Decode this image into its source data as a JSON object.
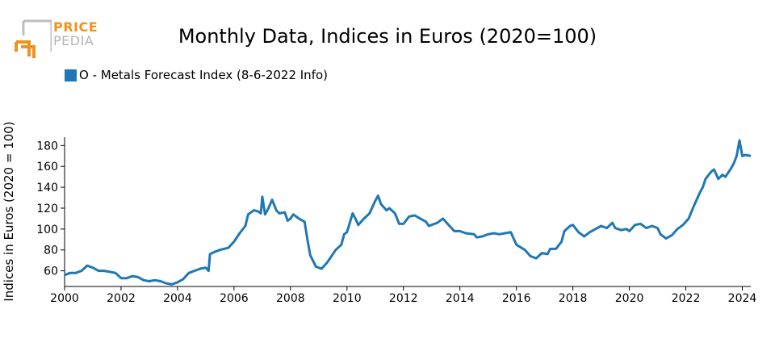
{
  "logo": {
    "line1": "PRICE",
    "line2": "PEDIA"
  },
  "colors": {
    "series": "#1f77b4",
    "logo_orange": "#f0921e",
    "logo_gray": "#b5b5b5"
  },
  "chart_data": {
    "type": "line",
    "title": "Monthly Data, Indices in Euros (2020=100)",
    "ylabel": "Indices in Euros (2020 = 100)",
    "xlabel": "",
    "xlim": [
      2000,
      2024.3
    ],
    "ylim": [
      45,
      188
    ],
    "xticks": [
      2000,
      2002,
      2004,
      2006,
      2008,
      2010,
      2012,
      2014,
      2016,
      2018,
      2020,
      2022,
      2024
    ],
    "yticks": [
      60,
      80,
      100,
      120,
      140,
      160,
      180
    ],
    "grid": false,
    "legend_position": "top-left",
    "series": [
      {
        "name": "O - Metals Forecast Index (8-6-2022 Info)",
        "color": "#1f77b4",
        "points": [
          [
            2000.0,
            56
          ],
          [
            2000.2,
            58
          ],
          [
            2000.4,
            58
          ],
          [
            2000.6,
            60
          ],
          [
            2000.8,
            65
          ],
          [
            2001.0,
            63
          ],
          [
            2001.2,
            60
          ],
          [
            2001.4,
            60
          ],
          [
            2001.6,
            59
          ],
          [
            2001.8,
            58
          ],
          [
            2002.0,
            53
          ],
          [
            2002.2,
            53
          ],
          [
            2002.4,
            55
          ],
          [
            2002.6,
            54
          ],
          [
            2002.8,
            51
          ],
          [
            2003.0,
            50
          ],
          [
            2003.2,
            51
          ],
          [
            2003.4,
            50
          ],
          [
            2003.6,
            48
          ],
          [
            2003.8,
            47
          ],
          [
            2004.0,
            49
          ],
          [
            2004.2,
            52
          ],
          [
            2004.4,
            58
          ],
          [
            2004.6,
            60
          ],
          [
            2004.8,
            62
          ],
          [
            2005.0,
            63
          ],
          [
            2005.1,
            60
          ],
          [
            2005.15,
            76
          ],
          [
            2005.3,
            78
          ],
          [
            2005.5,
            80
          ],
          [
            2005.8,
            82
          ],
          [
            2006.0,
            88
          ],
          [
            2006.2,
            96
          ],
          [
            2006.4,
            103
          ],
          [
            2006.5,
            114
          ],
          [
            2006.7,
            118
          ],
          [
            2006.85,
            117
          ],
          [
            2006.95,
            115
          ],
          [
            2007.0,
            131
          ],
          [
            2007.1,
            114
          ],
          [
            2007.2,
            119
          ],
          [
            2007.35,
            128
          ],
          [
            2007.5,
            118
          ],
          [
            2007.6,
            115
          ],
          [
            2007.8,
            116
          ],
          [
            2007.9,
            108
          ],
          [
            2008.0,
            110
          ],
          [
            2008.1,
            114
          ],
          [
            2008.3,
            110
          ],
          [
            2008.5,
            107
          ],
          [
            2008.6,
            90
          ],
          [
            2008.7,
            75
          ],
          [
            2008.9,
            64
          ],
          [
            2009.1,
            62
          ],
          [
            2009.3,
            68
          ],
          [
            2009.4,
            72
          ],
          [
            2009.6,
            80
          ],
          [
            2009.8,
            85
          ],
          [
            2009.9,
            95
          ],
          [
            2010.0,
            97
          ],
          [
            2010.2,
            115
          ],
          [
            2010.3,
            110
          ],
          [
            2010.4,
            104
          ],
          [
            2010.6,
            110
          ],
          [
            2010.8,
            115
          ],
          [
            2011.0,
            127
          ],
          [
            2011.1,
            132
          ],
          [
            2011.2,
            124
          ],
          [
            2011.4,
            118
          ],
          [
            2011.5,
            120
          ],
          [
            2011.7,
            115
          ],
          [
            2011.85,
            105
          ],
          [
            2012.0,
            105
          ],
          [
            2012.2,
            112
          ],
          [
            2012.4,
            113
          ],
          [
            2012.6,
            110
          ],
          [
            2012.8,
            107
          ],
          [
            2012.9,
            103
          ],
          [
            2013.0,
            104
          ],
          [
            2013.2,
            106
          ],
          [
            2013.4,
            110
          ],
          [
            2013.6,
            104
          ],
          [
            2013.8,
            98
          ],
          [
            2014.0,
            98
          ],
          [
            2014.2,
            96
          ],
          [
            2014.5,
            95
          ],
          [
            2014.6,
            92
          ],
          [
            2014.8,
            93
          ],
          [
            2015.0,
            95
          ],
          [
            2015.2,
            96
          ],
          [
            2015.4,
            95
          ],
          [
            2015.6,
            96
          ],
          [
            2015.8,
            97
          ],
          [
            2016.0,
            85
          ],
          [
            2016.3,
            80
          ],
          [
            2016.5,
            74
          ],
          [
            2016.7,
            72
          ],
          [
            2016.9,
            77
          ],
          [
            2017.1,
            76
          ],
          [
            2017.2,
            81
          ],
          [
            2017.4,
            81
          ],
          [
            2017.6,
            88
          ],
          [
            2017.7,
            98
          ],
          [
            2017.9,
            103
          ],
          [
            2018.0,
            104
          ],
          [
            2018.2,
            97
          ],
          [
            2018.4,
            93
          ],
          [
            2018.6,
            97
          ],
          [
            2018.8,
            100
          ],
          [
            2019.0,
            103
          ],
          [
            2019.2,
            101
          ],
          [
            2019.4,
            106
          ],
          [
            2019.5,
            101
          ],
          [
            2019.7,
            99
          ],
          [
            2019.9,
            100
          ],
          [
            2020.0,
            98
          ],
          [
            2020.2,
            104
          ],
          [
            2020.4,
            105
          ],
          [
            2020.6,
            101
          ],
          [
            2020.8,
            103
          ],
          [
            2021.0,
            101
          ],
          [
            2021.1,
            95
          ],
          [
            2021.3,
            91
          ],
          [
            2021.5,
            94
          ],
          [
            2021.7,
            100
          ],
          [
            2021.9,
            104
          ],
          [
            2022.1,
            110
          ],
          [
            2022.3,
            123
          ],
          [
            2022.5,
            135
          ],
          [
            2022.6,
            140
          ],
          [
            2022.7,
            148
          ],
          [
            2022.9,
            155
          ],
          [
            2023.0,
            157
          ],
          [
            2023.15,
            148
          ],
          [
            2023.3,
            152
          ],
          [
            2023.4,
            150
          ],
          [
            2023.6,
            158
          ],
          [
            2023.7,
            163
          ],
          [
            2023.8,
            170
          ],
          [
            2023.9,
            185
          ],
          [
            2024.0,
            170
          ],
          [
            2024.1,
            171
          ],
          [
            2024.3,
            170
          ]
        ]
      }
    ]
  }
}
